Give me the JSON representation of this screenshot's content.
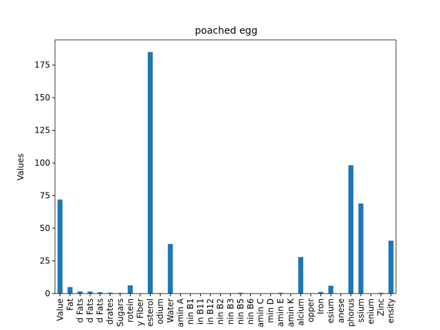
{
  "chart_data": {
    "type": "bar",
    "title": "poached egg",
    "ylabel": "Values",
    "categories": [
      "Value",
      "Fat",
      "d Fats",
      "d Fats",
      "d Fats",
      "drates",
      "Sugars",
      "rotein",
      "y Fiber",
      "esterol",
      "odium",
      "Water",
      "amin A",
      "nin B1",
      "in B11",
      "in B12",
      "nin B2",
      "nin B3",
      "nin B5",
      "nin B6",
      "amin C",
      "min D",
      "amin E",
      "amin K",
      "alcium",
      "opper",
      "Iron",
      "esium",
      "anese",
      "phorus",
      "ssium",
      "enium",
      "Zinc",
      "ensity"
    ],
    "values": [
      72,
      5,
      1.6,
      1.5,
      1.0,
      0.7,
      0.4,
      6.3,
      0,
      185,
      0.3,
      38,
      0.1,
      0.1,
      0,
      0,
      0.2,
      0.1,
      0.6,
      0.1,
      0,
      0,
      0.6,
      0,
      28,
      0,
      1.2,
      6,
      0,
      98.3,
      69,
      0,
      0.6,
      40.5
    ],
    "color": "#1f77b4",
    "ylim": [
      0,
      194.3
    ],
    "yticks": [
      0,
      25,
      50,
      75,
      100,
      125,
      150,
      175
    ],
    "grid": false
  }
}
